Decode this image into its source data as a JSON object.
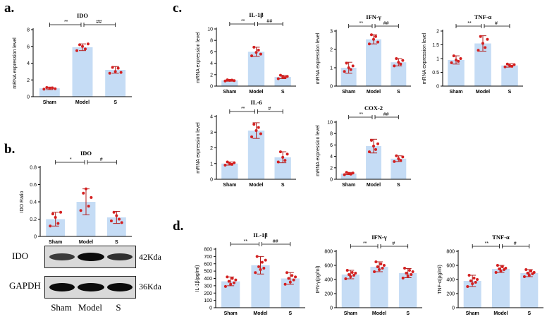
{
  "panels": {
    "a": "a.",
    "b": "b.",
    "c": "c.",
    "d": "d."
  },
  "colors": {
    "bar": "#c5dcf5",
    "dot": "#d42020",
    "err": "#b22222",
    "axis": "#000000"
  },
  "chart_data": [
    {
      "id": "a_ido",
      "panel": "a",
      "type": "bar",
      "title": "IDO",
      "ylabel": "mRNA expression level",
      "categories": [
        "Sham",
        "Model",
        "S"
      ],
      "values": [
        1.0,
        5.9,
        3.2
      ],
      "err": [
        0.15,
        0.4,
        0.4
      ],
      "ylim": [
        0,
        8
      ],
      "yticks": [
        0,
        2,
        4,
        6,
        8
      ],
      "sig1": "**",
      "sig2": "##",
      "points": [
        [
          0.9,
          1.1,
          1.0,
          1.05,
          0.95
        ],
        [
          5.5,
          6.2,
          6.0,
          5.7,
          6.3
        ],
        [
          2.8,
          3.5,
          3.0,
          3.4,
          2.9
        ]
      ]
    },
    {
      "id": "b_ido",
      "panel": "b",
      "type": "bar",
      "title": "IDO",
      "ylabel": "IDO Ratio",
      "categories": [
        "Sham",
        "Model",
        "S"
      ],
      "values": [
        0.2,
        0.4,
        0.22
      ],
      "err": [
        0.08,
        0.15,
        0.07
      ],
      "ylim": [
        0,
        0.8
      ],
      "yticks": [
        0.0,
        0.2,
        0.4,
        0.6,
        0.8
      ],
      "sig1": "*",
      "sig2": "#",
      "points": [
        [
          0.12,
          0.26,
          0.22,
          0.15,
          0.28
        ],
        [
          0.3,
          0.5,
          0.55,
          0.35,
          0.45
        ],
        [
          0.18,
          0.28,
          0.24,
          0.2,
          0.16
        ]
      ]
    },
    {
      "id": "c_il1b",
      "panel": "c",
      "type": "bar",
      "title": "IL-1β",
      "ylabel": "mRNA expression level",
      "categories": [
        "Sham",
        "Model",
        "S"
      ],
      "values": [
        1.0,
        6.0,
        1.6
      ],
      "err": [
        0.15,
        0.8,
        0.3
      ],
      "ylim": [
        0,
        10
      ],
      "yticks": [
        0,
        2,
        4,
        6,
        8,
        10
      ],
      "sig1": "**",
      "sig2": "##",
      "points": [
        [
          0.9,
          1.1,
          1.0,
          1.05,
          0.95
        ],
        [
          5.3,
          6.8,
          5.9,
          6.3,
          5.6
        ],
        [
          1.3,
          1.9,
          1.6,
          1.5,
          1.7
        ]
      ]
    },
    {
      "id": "c_ifng",
      "panel": "c",
      "type": "bar",
      "title": "IFN-γ",
      "ylabel": "mRNA expression level",
      "categories": [
        "Sham",
        "Model",
        "S"
      ],
      "values": [
        1.0,
        2.55,
        1.3
      ],
      "err": [
        0.3,
        0.25,
        0.2
      ],
      "ylim": [
        0,
        3
      ],
      "yticks": [
        0,
        1,
        2,
        3
      ],
      "sig1": "**",
      "sig2": "##",
      "points": [
        [
          0.8,
          1.25,
          1.0,
          0.9,
          1.1
        ],
        [
          2.3,
          2.8,
          2.55,
          2.7,
          2.4
        ],
        [
          1.1,
          1.5,
          1.3,
          1.2,
          1.4
        ]
      ]
    },
    {
      "id": "c_tnfa",
      "panel": "c",
      "type": "bar",
      "title": "TNF-α",
      "ylabel": "mRNA expression level",
      "categories": [
        "Sham",
        "Model",
        "S"
      ],
      "values": [
        0.95,
        1.55,
        0.75
      ],
      "err": [
        0.15,
        0.28,
        0.06
      ],
      "ylim": [
        0,
        2.0
      ],
      "yticks": [
        0.0,
        0.5,
        1.0,
        1.5,
        2.0
      ],
      "sig1": "**",
      "sig2": "#",
      "points": [
        [
          0.85,
          1.1,
          0.95,
          0.9,
          1.0
        ],
        [
          1.3,
          1.8,
          1.55,
          1.4,
          1.7
        ],
        [
          0.7,
          0.8,
          0.75,
          0.72,
          0.78
        ]
      ]
    },
    {
      "id": "c_il6",
      "panel": "c",
      "type": "bar",
      "title": "IL-6",
      "ylabel": "mRNA expression level",
      "categories": [
        "Sham",
        "Model",
        "S"
      ],
      "values": [
        1.0,
        3.1,
        1.4
      ],
      "err": [
        0.1,
        0.5,
        0.35
      ],
      "ylim": [
        0,
        4
      ],
      "yticks": [
        0,
        1,
        2,
        3,
        4
      ],
      "sig1": "**",
      "sig2": "#",
      "points": [
        [
          0.9,
          1.1,
          1.0,
          0.95,
          1.05
        ],
        [
          2.7,
          3.5,
          3.1,
          3.3,
          2.9
        ],
        [
          1.1,
          1.75,
          1.4,
          1.2,
          1.6
        ]
      ]
    },
    {
      "id": "c_cox2",
      "panel": "c",
      "type": "bar",
      "title": "COX-2",
      "ylabel": "mRNA expression level",
      "categories": [
        "Sham",
        "Model",
        "S"
      ],
      "values": [
        1.0,
        5.8,
        3.6
      ],
      "err": [
        0.2,
        1.2,
        0.5
      ],
      "ylim": [
        0,
        10
      ],
      "yticks": [
        0,
        2,
        4,
        6,
        8,
        10
      ],
      "sig1": "**",
      "sig2": "##",
      "points": [
        [
          0.8,
          1.2,
          1.0,
          0.9,
          1.1
        ],
        [
          4.8,
          6.8,
          5.8,
          5.2,
          6.2
        ],
        [
          3.1,
          4.1,
          3.6,
          3.3,
          3.9
        ]
      ]
    },
    {
      "id": "d_il1b",
      "panel": "d",
      "type": "bar",
      "title": "IL-1β",
      "ylabel": "IL-1β(pg/ml)",
      "categories": [
        "Sham",
        "Model",
        "S"
      ],
      "values": [
        360,
        580,
        400
      ],
      "err": [
        60,
        120,
        80
      ],
      "ylim": [
        0,
        800
      ],
      "yticks": [
        0,
        100,
        200,
        300,
        400,
        500,
        600,
        700,
        800
      ],
      "sig1": "**",
      "sig2": "##",
      "points": [
        [
          290,
          420,
          360,
          320,
          400,
          340,
          380
        ],
        [
          480,
          700,
          560,
          520,
          620,
          540,
          650
        ],
        [
          320,
          480,
          400,
          350,
          440,
          380,
          420
        ]
      ]
    },
    {
      "id": "d_ifng",
      "panel": "d",
      "type": "bar",
      "title": "IFN-γ",
      "ylabel": "IFN-γ(pg/ml)",
      "categories": [
        "Sham",
        "Model",
        "S"
      ],
      "values": [
        470,
        580,
        490
      ],
      "err": [
        60,
        70,
        65
      ],
      "ylim": [
        0,
        800
      ],
      "yticks": [
        0,
        200,
        400,
        600,
        800
      ],
      "sig1": "**",
      "sig2": "#",
      "points": [
        [
          410,
          530,
          470,
          440,
          500,
          460,
          490
        ],
        [
          510,
          650,
          580,
          540,
          620,
          560,
          600
        ],
        [
          420,
          560,
          490,
          450,
          530,
          470,
          510
        ]
      ]
    },
    {
      "id": "d_tnfa",
      "panel": "d",
      "type": "bar",
      "title": "TNF-α",
      "ylabel": "TNF-α(pg/ml)",
      "categories": [
        "Sham",
        "Model",
        "S"
      ],
      "values": [
        380,
        550,
        490
      ],
      "err": [
        80,
        50,
        50
      ],
      "ylim": [
        0,
        800
      ],
      "yticks": [
        0,
        200,
        400,
        600,
        800
      ],
      "sig1": "**",
      "sig2": "#",
      "points": [
        [
          300,
          460,
          380,
          340,
          420,
          360,
          400
        ],
        [
          500,
          600,
          550,
          520,
          580,
          540,
          560
        ],
        [
          440,
          540,
          490,
          460,
          520,
          480,
          500
        ]
      ]
    }
  ],
  "western_blot": {
    "rows": [
      {
        "protein": "IDO",
        "size": "42Kda"
      },
      {
        "protein": "GAPDH",
        "size": "36Kda"
      }
    ],
    "lanes": [
      "Sham",
      "Model",
      "S"
    ]
  }
}
